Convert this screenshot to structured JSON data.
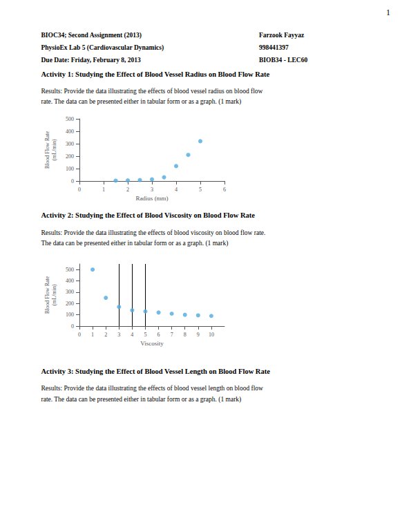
{
  "annotations": [
    "1",
    "BIOC34; Second Assignment (2013)",
    "Farzook Fayyaz",
    "PhysioEx Lab 5 (Cardiovascular Dynamics)",
    "998441397",
    "Due Date: Friday, February 8, 2013",
    "BIOB34 - LEC60",
    "Activity 1: Studying the Effect of Blood Vessel Radius on Blood Flow Rate",
    "Results: Provide the data illustrating the effects of blood vessel radius on blood flow",
    "rate. The data can be presented either in tabular form or as a graph. (1 mark)",
    "Activity 2: Studying the Effect of Blood Viscosity on Blood Flow Rate",
    "Results: Provide the data illustrating the effects of blood viscosity on blood flow rate.",
    "The data can be presented either in tabular form or as a graph. (1 mark)",
    "Activity 3: Studying the Effect of Blood Vessel Length on Blood Flow Rate",
    "Results: Provide the data illustrating the effects of blood vessel length on blood flow",
    "rate. The data can be presented either in tabular form or as a graph. (1 mark)"
  ],
  "chart_data": [
    {
      "type": "scatter",
      "xlabel": "Radius (mm)",
      "ylabel": "Blood Flow Rate\n(mL/min)",
      "x": [
        1.5,
        2.0,
        2.5,
        3.0,
        3.5,
        4.0,
        4.5,
        5.0
      ],
      "values": [
        3,
        5,
        8,
        14,
        30,
        120,
        210,
        320
      ],
      "color": "#4DAADD",
      "xlim": [
        0,
        6
      ],
      "xticks": [
        0,
        1,
        2,
        3,
        4,
        5,
        6
      ],
      "ylim": [
        0,
        500
      ],
      "yticks": [
        0,
        100,
        200,
        300,
        400,
        500
      ],
      "grid": false
    },
    {
      "type": "scatter",
      "xlabel": "Viscosity",
      "ylabel": "Blood Flow Rate\n(mL/min)",
      "x": [
        1,
        2,
        3,
        4,
        5,
        6,
        7,
        8,
        9,
        10
      ],
      "values": [
        500,
        250,
        170,
        140,
        130,
        120,
        110,
        100,
        95,
        90
      ],
      "color": "#4DAADD",
      "xlim": [
        0,
        11
      ],
      "xticks": [
        0,
        1,
        2,
        3,
        4,
        5,
        6,
        7,
        8,
        9,
        10
      ],
      "ylim": [
        0,
        550
      ],
      "yticks": [
        0,
        100,
        200,
        300,
        400,
        500
      ],
      "vlines": [
        3,
        4,
        5
      ],
      "grid": false
    }
  ]
}
